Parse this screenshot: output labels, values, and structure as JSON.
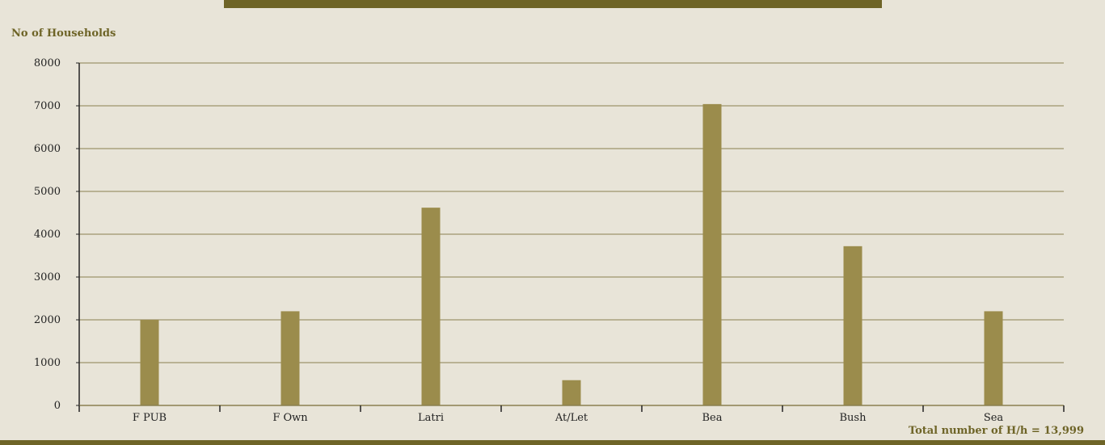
{
  "chart_data": {
    "type": "bar",
    "ylabel": "No of Households",
    "xlabel": "",
    "categories": [
      "F PUB",
      "F Own",
      "Latri",
      "At/Let",
      "Bea",
      "Bush",
      "Sea"
    ],
    "values": [
      2000,
      2200,
      4620,
      590,
      7040,
      3720,
      2200
    ],
    "ylim": [
      0,
      8000
    ],
    "yticks": [
      0,
      1000,
      2000,
      3000,
      4000,
      5000,
      6000,
      7000,
      8000
    ],
    "grid": true,
    "bar_color": "#9b8c4c",
    "footnote": "Total number of H/h = 13,999"
  },
  "colors": {
    "accent": "#6e6427",
    "gridline": "#8a8050",
    "background": "#e8e4d8"
  }
}
